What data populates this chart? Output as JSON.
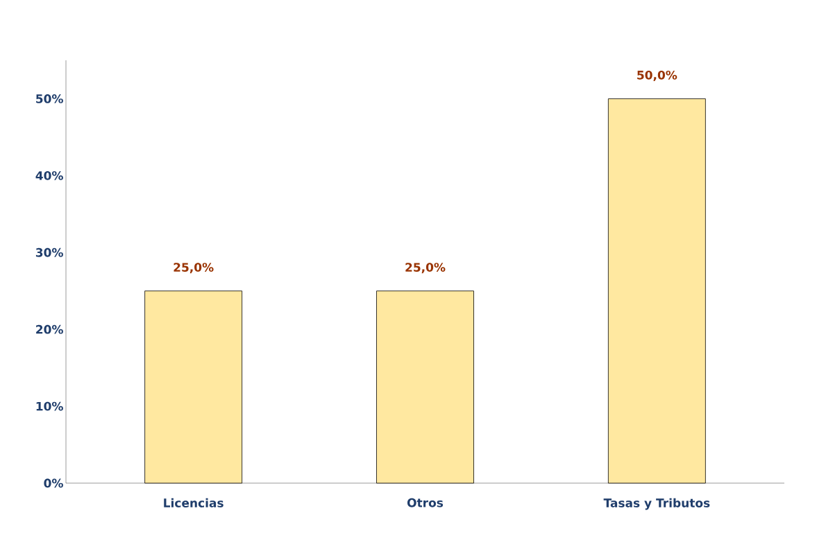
{
  "chart_data": {
    "type": "bar",
    "categories": [
      "Licencias",
      "Otros",
      "Tasas y Tributos"
    ],
    "values": [
      25,
      25,
      50
    ],
    "value_labels": [
      "25,0%",
      "25,0%",
      "50,0%"
    ],
    "color": "#ffe8a0",
    "ylim": [
      0,
      55
    ],
    "yticks": [
      {
        "value": 0,
        "label": "0%"
      },
      {
        "value": 10,
        "label": "10%"
      },
      {
        "value": 20,
        "label": "20%"
      },
      {
        "value": 30,
        "label": "30%"
      },
      {
        "value": 40,
        "label": "40%"
      },
      {
        "value": 50,
        "label": "50%"
      }
    ],
    "grid": false
  }
}
